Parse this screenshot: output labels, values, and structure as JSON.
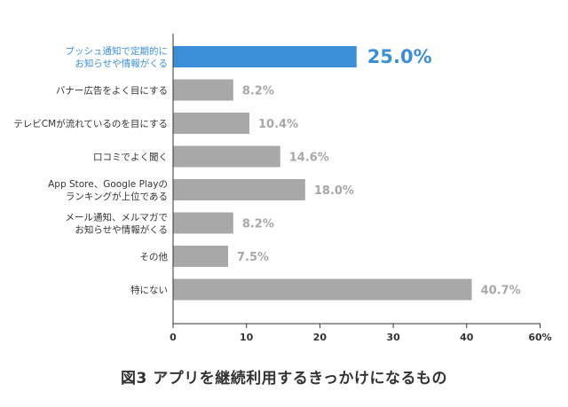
{
  "chart_data": {
    "type": "bar",
    "orientation": "horizontal",
    "categories": [
      [
        "プッシュ通知で定期的に",
        "お知らせや情報がくる"
      ],
      [
        "バナー広告をよく目にする"
      ],
      [
        "テレビCMが流れているのを目にする"
      ],
      [
        "口コミでよく聞く"
      ],
      [
        "App Store、Google Playの",
        "ランキングが上位である"
      ],
      [
        "メール通知、メルマガで",
        "お知らせや情報がくる"
      ],
      [
        "その他"
      ],
      [
        "特にない"
      ]
    ],
    "values": [
      25.0,
      8.2,
      10.4,
      14.6,
      18.0,
      8.2,
      7.5,
      40.7
    ],
    "value_labels": [
      "25.0%",
      "8.2%",
      "10.4%",
      "14.6%",
      "18.0%",
      "8.2%",
      "7.5%",
      "40.7%"
    ],
    "highlight_index": 0,
    "x_ticks": [
      "0",
      "10",
      "20",
      "30",
      "40",
      "60%"
    ],
    "xlim": [
      0,
      50
    ],
    "grid": false,
    "colors": {
      "highlight": "#3a8fd8",
      "bar": "#a8a8a8",
      "axis": "#333333"
    }
  },
  "caption": "図3 アプリを継続利用するきっかけになるもの"
}
